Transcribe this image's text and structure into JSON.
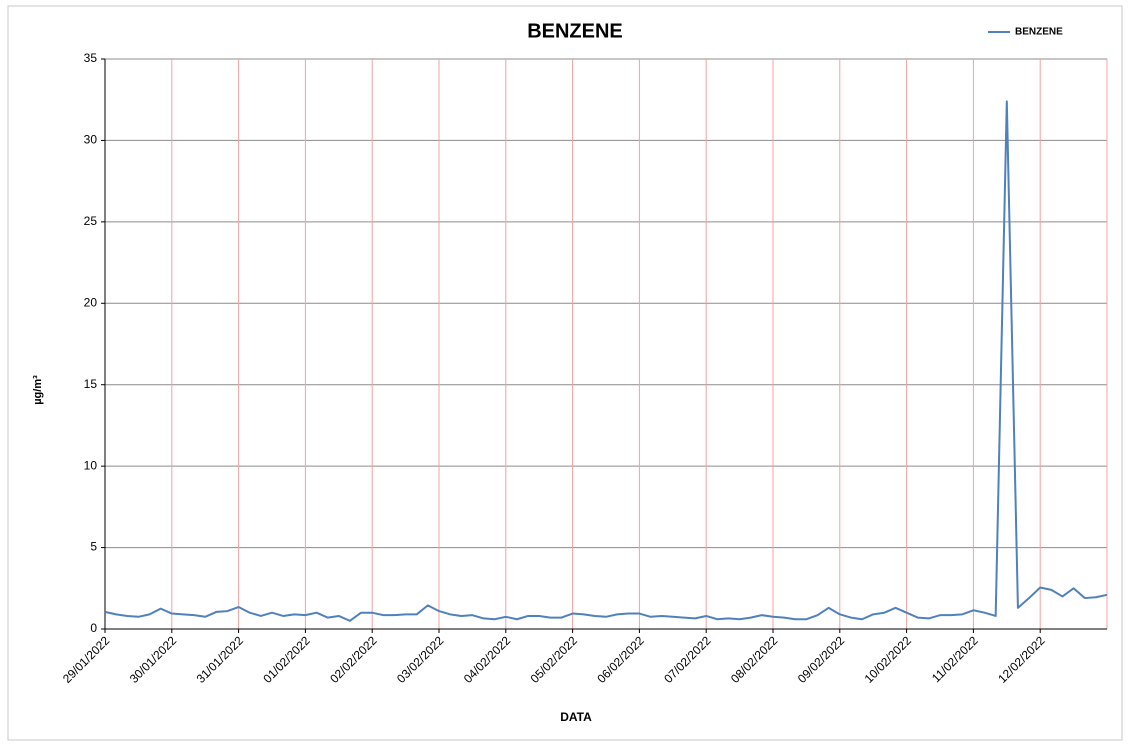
{
  "chart_data": {
    "type": "line",
    "title": "BENZENE",
    "x_label": "DATA",
    "y_label": "µg/m³",
    "categories": [
      "29/01/2022",
      null,
      null,
      null,
      null,
      null,
      "30/01/2022",
      null,
      null,
      null,
      null,
      null,
      "31/01/2022",
      null,
      null,
      null,
      null,
      null,
      "01/02/2022",
      null,
      null,
      null,
      null,
      null,
      "02/02/2022",
      null,
      null,
      null,
      null,
      null,
      "03/02/2022",
      null,
      null,
      null,
      null,
      null,
      "04/02/2022",
      null,
      null,
      null,
      null,
      null,
      "05/02/2022",
      null,
      null,
      null,
      null,
      null,
      "06/02/2022",
      null,
      null,
      null,
      null,
      null,
      "07/02/2022",
      null,
      null,
      null,
      null,
      null,
      "08/02/2022",
      null,
      null,
      null,
      null,
      null,
      "09/02/2022",
      null,
      null,
      null,
      null,
      null,
      "10/02/2022",
      null,
      null,
      null,
      null,
      null,
      "11/02/2022",
      null,
      null,
      null,
      null,
      null,
      "12/02/2022",
      null,
      null,
      null,
      null,
      null,
      null
    ],
    "series": [
      {
        "name": "BENZENE",
        "color": "#4f81bd",
        "values": [
          1.05,
          0.9,
          0.8,
          0.75,
          0.9,
          1.25,
          0.95,
          0.9,
          0.85,
          0.75,
          1.05,
          1.1,
          1.35,
          1.0,
          0.8,
          1.0,
          0.8,
          0.9,
          0.85,
          1.0,
          0.7,
          0.8,
          0.5,
          1.0,
          1.0,
          0.85,
          0.85,
          0.9,
          0.9,
          1.45,
          1.1,
          0.9,
          0.8,
          0.85,
          0.65,
          0.6,
          0.75,
          0.6,
          0.8,
          0.8,
          0.7,
          0.7,
          0.95,
          0.9,
          0.8,
          0.75,
          0.9,
          0.95,
          0.95,
          0.75,
          0.8,
          0.75,
          0.7,
          0.65,
          0.8,
          0.6,
          0.65,
          0.6,
          0.7,
          0.85,
          0.75,
          0.7,
          0.6,
          0.6,
          0.85,
          1.3,
          0.9,
          0.7,
          0.6,
          0.9,
          1.0,
          1.3,
          1.0,
          0.7,
          0.65,
          0.85,
          0.85,
          0.9,
          1.15,
          1.0,
          0.8,
          32.4,
          1.3,
          1.9,
          2.55,
          2.4,
          2.0,
          2.5,
          1.9,
          1.95,
          2.1
        ]
      }
    ],
    "ylim": [
      0,
      35
    ],
    "yticks": [
      0,
      5,
      10,
      15,
      20,
      25,
      30,
      35
    ],
    "grid": true,
    "legend": "top-right"
  }
}
